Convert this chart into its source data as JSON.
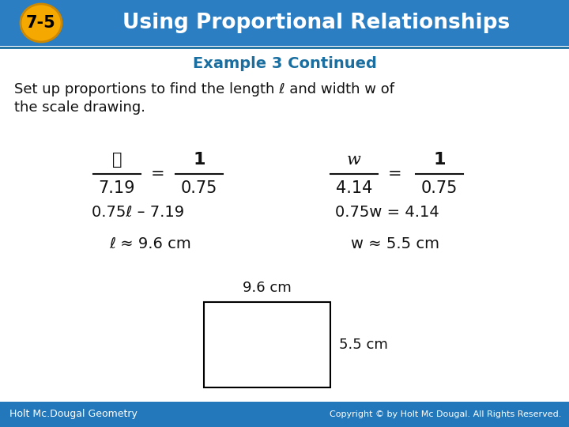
{
  "header_bg_color": "#2B7EC2",
  "header_text": "Using Proportional Relationships",
  "header_badge_text": "7-5",
  "header_badge_bg": "#F5A800",
  "header_badge_edge": "#CC8800",
  "subheader_text": "Example 3 Continued",
  "subheader_color": "#1A6FA0",
  "body_bg_color": "#FFFFFF",
  "footer_bg_color": "#2278BA",
  "footer_left": "Holt Mc.Dougal Geometry",
  "footer_right": "Copyright © by Holt Mc Dougal. All Rights Reserved.",
  "body_text_color": "#111111",
  "intro_line1": "Set up proportions to find the length ℓ and width w of",
  "intro_line2": "the scale drawing.",
  "eq1_line2": "0.75ℓ – 7.19",
  "eq1_line3": "ℓ ≈ 9.6 cm",
  "eq2_line2": "0.75w = 4.14",
  "eq2_line3": "w ≈ 5.5 cm",
  "rect_label_top": "9.6 cm",
  "rect_label_right": "5.5 cm"
}
